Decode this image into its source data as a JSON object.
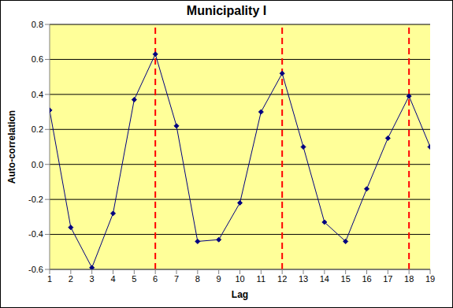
{
  "chart_data": {
    "type": "line",
    "title": "Municipality I",
    "x_label": "Lag",
    "y_label": "Auto-correlation",
    "x": [
      1,
      2,
      3,
      4,
      5,
      6,
      7,
      8,
      9,
      10,
      11,
      12,
      13,
      14,
      15,
      16,
      17,
      18,
      19
    ],
    "values": [
      0.31,
      -0.36,
      -0.59,
      -0.28,
      0.37,
      0.63,
      0.22,
      -0.44,
      -0.43,
      -0.22,
      0.3,
      0.52,
      0.1,
      -0.33,
      -0.44,
      -0.14,
      0.15,
      0.39,
      0.1
    ],
    "color": "#000080",
    "marker": "diamond",
    "xlim": [
      1,
      19
    ],
    "xticks": [
      1,
      2,
      3,
      4,
      5,
      6,
      7,
      8,
      9,
      10,
      11,
      12,
      13,
      14,
      15,
      16,
      17,
      18,
      19
    ],
    "ylim": [
      -0.6,
      0.8
    ],
    "yticks": [
      -0.6,
      -0.4,
      -0.2,
      {
        "value": 0,
        "label": "0.0"
      },
      0.2,
      0.4,
      0.6,
      0.8
    ],
    "grid": true,
    "vlines": [
      6,
      12,
      18
    ]
  }
}
